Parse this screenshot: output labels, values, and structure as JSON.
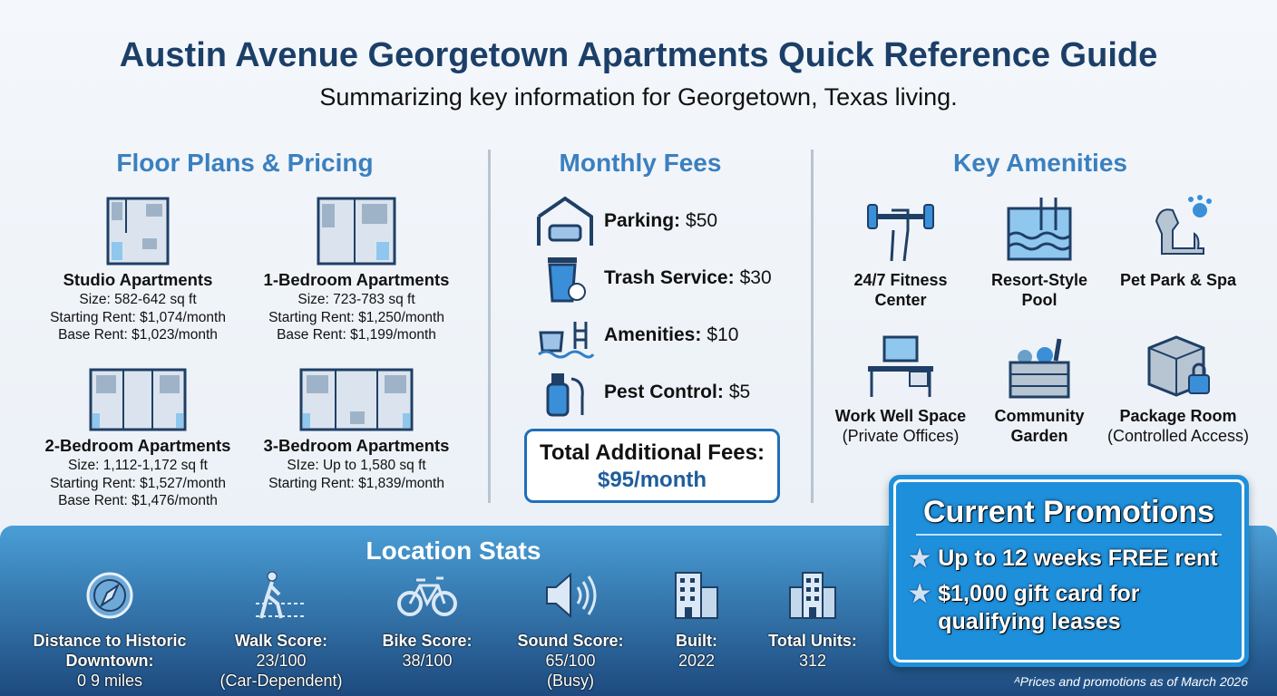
{
  "header": {
    "title": "Austin Avenue Georgetown Apartments Quick Reference Guide",
    "subtitle": "Summarizing key information for Georgetown, Texas living."
  },
  "floor_plans": {
    "heading": "Floor Plans & Pricing",
    "plans": [
      {
        "name": "Studio Apartments",
        "lines": [
          "Size: 582-642 sq ft",
          "Starting Rent: $1,074/month",
          "Base Rent: $1,023/month"
        ],
        "icon": "studio-floorplan-icon"
      },
      {
        "name": "1-Bedroom Apartments",
        "lines": [
          "Size: 723-783 sq ft",
          "Starting Rent: $1,250/month",
          "Base Rent: $1,199/month"
        ],
        "icon": "1br-floorplan-icon"
      },
      {
        "name": "2-Bedroom Apartments",
        "lines": [
          "Size: 1,112-1,172 sq ft",
          "Starting Rent: $1,527/month",
          "Base Rent: $1,476/month"
        ],
        "icon": "2br-floorplan-icon"
      },
      {
        "name": "3-Bedroom Apartments",
        "lines": [
          "SIze: Up to 1,580 sq ft",
          "Starting Rent: $1,839/month"
        ],
        "icon": "3br-floorplan-icon"
      }
    ]
  },
  "fees": {
    "heading": "Monthly Fees",
    "items": [
      {
        "label": "Parking:",
        "value": "$50",
        "icon": "garage-car-icon"
      },
      {
        "label": "Trash Service:",
        "value": "$30",
        "icon": "trash-can-icon"
      },
      {
        "label": "Amenities:",
        "value": "$10",
        "icon": "pool-bag-icon"
      },
      {
        "label": "Pest Control:",
        "value": "$5",
        "icon": "spray-bottle-icon"
      }
    ],
    "total_label": "Total Additional Fees:",
    "total_value": "$95/month"
  },
  "amenities": {
    "heading": "Key Amenities",
    "items": [
      {
        "l1": "24/7 Fitness",
        "l2": "Center",
        "icon": "dumbbell-icon"
      },
      {
        "l1": "Resort-Style",
        "l2": "Pool",
        "icon": "pool-icon"
      },
      {
        "l1": "Pet Park & Spa",
        "l2": "",
        "icon": "dog-paw-icon"
      },
      {
        "l1": "Work Well Space",
        "l2": "(Private Offices)",
        "icon": "desk-computer-icon"
      },
      {
        "l1": "Community",
        "l2": "Garden",
        "icon": "garden-icon"
      },
      {
        "l1": "Package Room",
        "l2": "(Controlled Access)",
        "icon": "package-lock-icon"
      }
    ]
  },
  "location": {
    "heading": "Location Stats",
    "stats": [
      {
        "l1": "Distance to Historic",
        "l2": "Downtown:",
        "l3": "0 9 miles",
        "icon": "compass-icon"
      },
      {
        "l1": "Walk Score:",
        "l2": "23/100",
        "l3": "(Car-Dependent)",
        "icon": "walking-icon"
      },
      {
        "l1": "Bike Score:",
        "l2": "38/100",
        "l3": "",
        "icon": "bicycle-icon"
      },
      {
        "l1": "Sound Score:",
        "l2": "65/100",
        "l3": "(Busy)",
        "icon": "speaker-icon"
      },
      {
        "l1": "Built:",
        "l2": "2022",
        "l3": "",
        "icon": "building-icon"
      },
      {
        "l1": "Total Units:",
        "l2": "312",
        "l3": "",
        "icon": "buildings-icon"
      }
    ]
  },
  "promotions": {
    "heading": "Current Promotions",
    "items": [
      "Up to 12 weeks FREE rent",
      "$1,000 gift card for qualifying leases"
    ],
    "icon": "star-icon"
  },
  "footnote": "ᴬPrices and promotions as of March 2026",
  "colors": {
    "title": "#1b3f68",
    "heading": "#3b80bf",
    "promo_bg": "#1e8fdb",
    "band_top": "#4a9ed6",
    "band_bottom": "#1d4a7e"
  }
}
